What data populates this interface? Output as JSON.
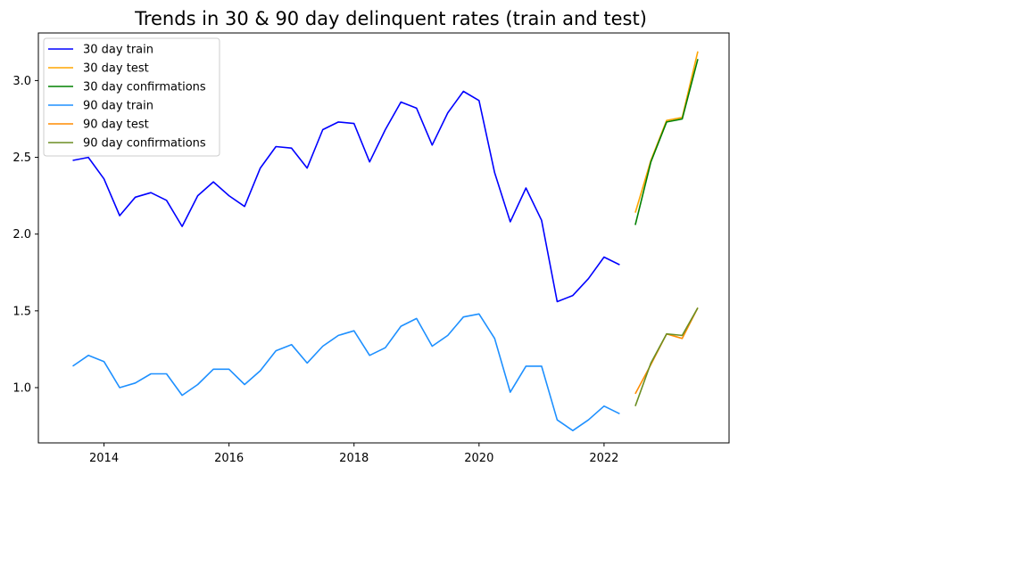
{
  "chart_data": {
    "type": "line",
    "title": "Trends in 30 & 90 day delinquent rates (train and test)",
    "xlabel": "",
    "ylabel": "",
    "xlim": [
      2012.95,
      2024.0
    ],
    "ylim": [
      0.64,
      3.31
    ],
    "x_ticks": [
      2014,
      2016,
      2018,
      2020,
      2022
    ],
    "x_tick_labels": [
      "2014",
      "2016",
      "2018",
      "2020",
      "2022"
    ],
    "y_ticks": [
      1.0,
      1.5,
      2.0,
      2.5,
      3.0
    ],
    "y_tick_labels": [
      "1.0",
      "1.5",
      "2.0",
      "2.5",
      "3.0"
    ],
    "grid": false,
    "legend_position": "top-left",
    "series": [
      {
        "name": "30 day train",
        "color": "#0000ff",
        "x": [
          2013.5,
          2013.75,
          2014.0,
          2014.25,
          2014.5,
          2014.75,
          2015.0,
          2015.25,
          2015.5,
          2015.75,
          2016.0,
          2016.25,
          2016.5,
          2016.75,
          2017.0,
          2017.25,
          2017.5,
          2017.75,
          2018.0,
          2018.25,
          2018.5,
          2018.75,
          2019.0,
          2019.25,
          2019.5,
          2019.75,
          2020.0,
          2020.25,
          2020.5,
          2020.75,
          2021.0,
          2021.25,
          2021.5,
          2021.75,
          2022.0,
          2022.25
        ],
        "values": [
          2.48,
          2.5,
          2.36,
          2.12,
          2.24,
          2.27,
          2.22,
          2.05,
          2.25,
          2.34,
          2.25,
          2.18,
          2.43,
          2.57,
          2.56,
          2.43,
          2.68,
          2.73,
          2.72,
          2.47,
          2.68,
          2.86,
          2.82,
          2.58,
          2.79,
          2.93,
          2.87,
          2.4,
          2.08,
          2.3,
          2.09,
          1.56,
          1.6,
          1.71,
          1.85,
          1.8
        ]
      },
      {
        "name": "30 day test",
        "color": "#ffa500",
        "x": [
          2022.5,
          2022.75,
          2023.0,
          2023.25,
          2023.5
        ],
        "values": [
          2.14,
          2.48,
          2.74,
          2.76,
          3.19
        ]
      },
      {
        "name": "30 day confirmations",
        "color": "#008000",
        "x": [
          2022.5,
          2022.75,
          2023.0,
          2023.25,
          2023.5
        ],
        "values": [
          2.06,
          2.47,
          2.73,
          2.75,
          3.14
        ]
      },
      {
        "name": "90 day train",
        "color": "#1e90ff",
        "x": [
          2013.5,
          2013.75,
          2014.0,
          2014.25,
          2014.5,
          2014.75,
          2015.0,
          2015.25,
          2015.5,
          2015.75,
          2016.0,
          2016.25,
          2016.5,
          2016.75,
          2017.0,
          2017.25,
          2017.5,
          2017.75,
          2018.0,
          2018.25,
          2018.5,
          2018.75,
          2019.0,
          2019.25,
          2019.5,
          2019.75,
          2020.0,
          2020.25,
          2020.5,
          2020.75,
          2021.0,
          2021.25,
          2021.5,
          2021.75,
          2022.0,
          2022.25
        ],
        "values": [
          1.14,
          1.21,
          1.17,
          1.0,
          1.03,
          1.09,
          1.09,
          0.95,
          1.02,
          1.12,
          1.12,
          1.02,
          1.11,
          1.24,
          1.28,
          1.16,
          1.27,
          1.34,
          1.37,
          1.21,
          1.26,
          1.4,
          1.45,
          1.27,
          1.34,
          1.46,
          1.48,
          1.32,
          0.97,
          1.14,
          1.14,
          0.79,
          0.72,
          0.79,
          0.88,
          0.83
        ]
      },
      {
        "name": "90 day test",
        "color": "#ff8c00",
        "x": [
          2022.5,
          2022.75,
          2023.0,
          2023.25,
          2023.5
        ],
        "values": [
          0.96,
          1.15,
          1.35,
          1.32,
          1.52
        ]
      },
      {
        "name": "90 day confirmations",
        "color": "#6b8e23",
        "x": [
          2022.5,
          2022.75,
          2023.0,
          2023.25,
          2023.5
        ],
        "values": [
          0.88,
          1.16,
          1.35,
          1.34,
          1.52
        ]
      }
    ]
  }
}
